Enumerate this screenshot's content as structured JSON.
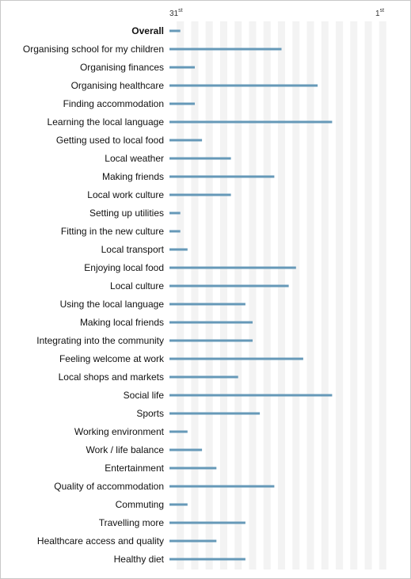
{
  "chart_data": {
    "type": "bar",
    "orientation": "horizontal",
    "axis": {
      "left_label": {
        "rank": "31",
        "suffix": "st"
      },
      "right_label": {
        "rank": "1",
        "suffix": "st"
      }
    },
    "xlim": [
      31,
      1
    ],
    "grid": true,
    "bar_color": "#6699b8",
    "categories": [
      "Overall",
      "Organising school for my children",
      "Organising finances",
      "Organising healthcare",
      "Finding accommodation",
      "Learning the local language",
      "Getting used to local food",
      "Local weather",
      "Making friends",
      "Local work culture",
      "Setting up utilities",
      "Fitting in the new culture",
      "Local transport",
      "Enjoying local food",
      "Local culture",
      "Using the local language",
      "Making local friends",
      "Integrating into the community",
      "Feeling welcome at work",
      "Local shops and markets",
      "Social life",
      "Sports",
      "Working environment",
      "Work / life balance",
      "Entertainment",
      "Quality of accommodation",
      "Commuting",
      "Travelling more",
      "Healthcare access and quality",
      "Healthy diet"
    ],
    "values": [
      30,
      16,
      28,
      11,
      28,
      9,
      27,
      23,
      17,
      23,
      30,
      30,
      29,
      14,
      15,
      21,
      20,
      20,
      13,
      22,
      9,
      19,
      29,
      27,
      25,
      17,
      29,
      21,
      25,
      21
    ],
    "bold_categories": [
      "Overall"
    ]
  }
}
